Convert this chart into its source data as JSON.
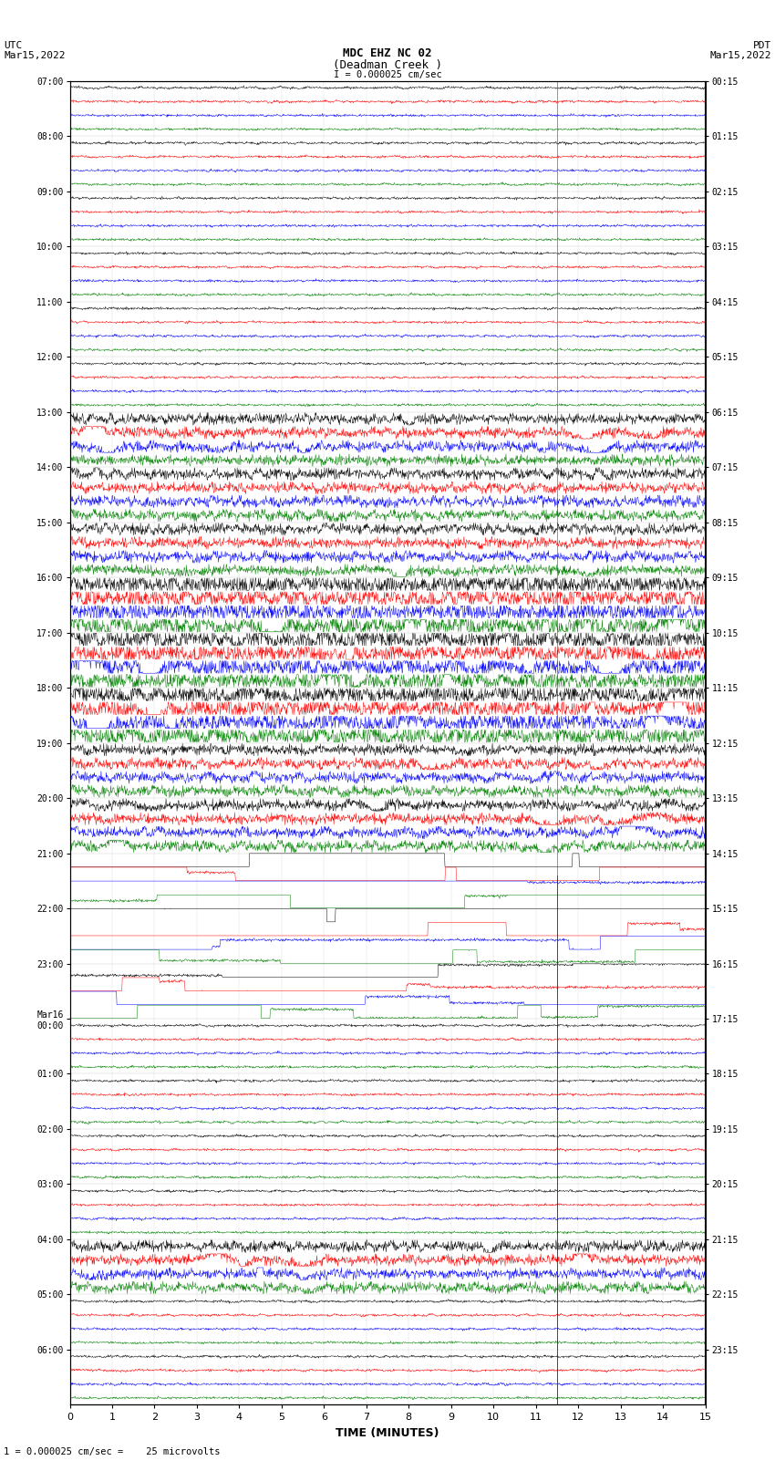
{
  "title_line1": "MDC EHZ NC 02",
  "title_line2": "(Deadman Creek )",
  "title_line3": "I = 0.000025 cm/sec",
  "xlabel": "TIME (MINUTES)",
  "footer": "1 = 0.000025 cm/sec =    25 microvolts",
  "bg_color": "#ffffff",
  "trace_color_cycle": [
    "black",
    "red",
    "blue",
    "green"
  ],
  "num_hours": 24,
  "traces_per_hour": 4,
  "minutes": 15,
  "left_times_hours": [
    "07:00",
    "08:00",
    "09:00",
    "10:00",
    "11:00",
    "12:00",
    "13:00",
    "14:00",
    "15:00",
    "16:00",
    "17:00",
    "18:00",
    "19:00",
    "20:00",
    "21:00",
    "22:00",
    "23:00",
    "Mar16\n00:00",
    "01:00",
    "02:00",
    "03:00",
    "04:00",
    "05:00",
    "06:00"
  ],
  "right_times_hours": [
    "00:15",
    "01:15",
    "02:15",
    "03:15",
    "04:15",
    "05:15",
    "06:15",
    "07:15",
    "08:15",
    "09:15",
    "10:15",
    "11:15",
    "12:15",
    "13:15",
    "14:15",
    "15:15",
    "16:15",
    "17:15",
    "18:15",
    "19:15",
    "20:15",
    "21:15",
    "22:15",
    "23:15"
  ],
  "quiet_noise": 0.04,
  "moderate_noise": 0.18,
  "active_noise": 0.32,
  "hour_activity": [
    0,
    0,
    0,
    0,
    0,
    0,
    1,
    1,
    1,
    2,
    2,
    2,
    1,
    1,
    0,
    3,
    3,
    0,
    0,
    0,
    0,
    1,
    0,
    0
  ],
  "square_wave_hours": [
    14,
    15,
    16
  ],
  "vertical_line_x": 11.5,
  "vertical_line_color": "red"
}
